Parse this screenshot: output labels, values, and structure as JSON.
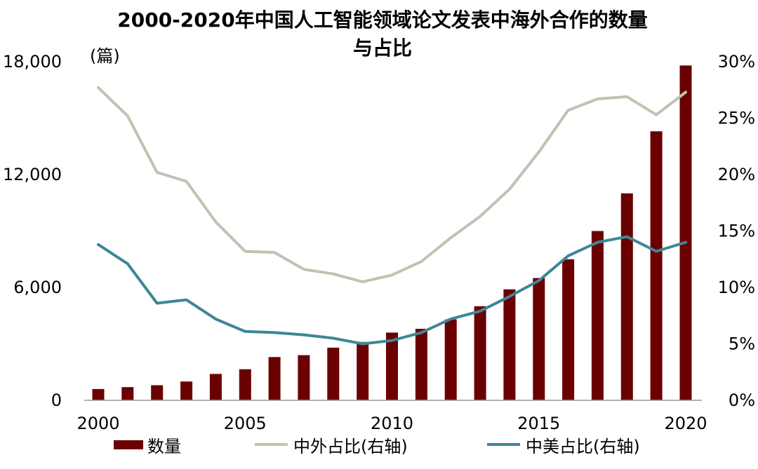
{
  "chart_data": {
    "type": "bar+line",
    "title": "2000-2020年中国人工智能领域论文发表中海外合作的数量与占比",
    "title_lines": [
      "2000-2020年中国人工智能领域论文发表中海外合作的数量",
      "与占比"
    ],
    "unit_left": "(篇)",
    "x": [
      2000,
      2001,
      2002,
      2003,
      2004,
      2005,
      2006,
      2007,
      2008,
      2009,
      2010,
      2011,
      2012,
      2013,
      2014,
      2015,
      2016,
      2017,
      2018,
      2019,
      2020
    ],
    "x_tick_labels": [
      "2000",
      "2005",
      "2010",
      "2015",
      "2020"
    ],
    "x_tick_values": [
      2000,
      2005,
      2010,
      2015,
      2020
    ],
    "y_left": {
      "range": [
        0,
        18000
      ],
      "ticks": [
        0,
        6000,
        12000,
        18000
      ],
      "tick_labels": [
        "0",
        "6,000",
        "12,000",
        "18,000"
      ]
    },
    "y_right": {
      "range": [
        0,
        30
      ],
      "ticks": [
        0,
        5,
        10,
        15,
        20,
        25,
        30
      ],
      "tick_labels": [
        "0%",
        "5%",
        "10%",
        "15%",
        "20%",
        "25%",
        "30%"
      ]
    },
    "series": [
      {
        "name": "数量",
        "type": "bar",
        "axis": "left",
        "color": "#6b0000",
        "values": [
          600,
          700,
          800,
          1000,
          1400,
          1650,
          2300,
          2400,
          2800,
          3100,
          3600,
          3800,
          4300,
          5000,
          5900,
          6500,
          7500,
          9000,
          11000,
          14300,
          17800
        ]
      },
      {
        "name": "中外占比(右轴)",
        "type": "line",
        "axis": "right",
        "color": "#c2c2b2",
        "values": [
          27.7,
          25.2,
          20.2,
          19.4,
          15.8,
          13.2,
          13.1,
          11.6,
          11.2,
          10.5,
          11.1,
          12.3,
          14.4,
          16.3,
          18.7,
          22.0,
          25.7,
          26.7,
          26.9,
          25.3,
          27.3
        ]
      },
      {
        "name": "中美占比(右轴)",
        "type": "line",
        "axis": "right",
        "color": "#3d8796",
        "values": [
          13.8,
          12.1,
          8.6,
          8.9,
          7.2,
          6.1,
          6.0,
          5.8,
          5.5,
          5.0,
          5.3,
          6.0,
          7.2,
          7.9,
          9.2,
          10.6,
          12.8,
          14.0,
          14.5,
          13.2,
          14.0
        ]
      }
    ],
    "legend": "bottom"
  }
}
